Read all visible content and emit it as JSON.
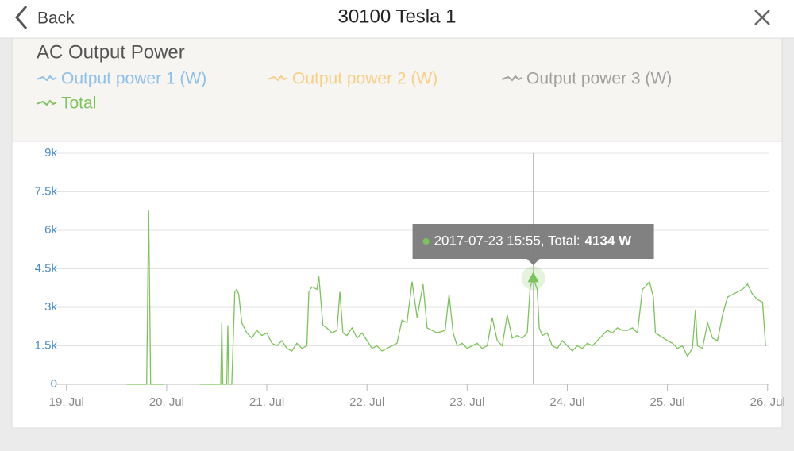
{
  "header": {
    "back": "Back",
    "title": "30100 Tesla 1"
  },
  "chart_data": {
    "type": "line",
    "title": "AC Output Power",
    "xlim": [
      18.97,
      26.01
    ],
    "xticks": [
      {
        "value": 19,
        "label": "19. Jul"
      },
      {
        "value": 20,
        "label": "20. Jul"
      },
      {
        "value": 21,
        "label": "21. Jul"
      },
      {
        "value": 22,
        "label": "22. Jul"
      },
      {
        "value": 23,
        "label": "23. Jul"
      },
      {
        "value": 24,
        "label": "24. Jul"
      },
      {
        "value": 25,
        "label": "25. Jul"
      },
      {
        "value": 26,
        "label": "26. Jul"
      }
    ],
    "ylim": [
      0,
      9000
    ],
    "yticks": [
      0,
      {
        "value": 1500,
        "label": "1.5k"
      },
      {
        "value": 3000,
        "label": "3k"
      },
      {
        "value": 4500,
        "label": "4.5k"
      },
      {
        "value": 6000,
        "label": "6k"
      },
      {
        "value": 7500,
        "label": "7.5k"
      },
      {
        "value": 9000,
        "label": "9k"
      }
    ],
    "grid": true,
    "series": [
      {
        "name": "Output power 1 (W)",
        "color": "#8fc0e8",
        "hidden": true
      },
      {
        "name": "Output power 2 (W)",
        "color": "#f7cf85",
        "hidden": true
      },
      {
        "name": "Output power 3 (W)",
        "color": "#a0a0a0",
        "hidden": true
      },
      {
        "name": "Total",
        "color": "#7dc35b",
        "x": [
          19.6,
          19.8,
          19.82,
          19.84,
          19.97,
          20.15,
          20.33,
          20.54,
          20.55,
          20.56,
          20.6,
          20.61,
          20.62,
          20.65,
          20.68,
          20.7,
          20.72,
          20.75,
          20.8,
          20.85,
          20.9,
          20.95,
          21.0,
          21.05,
          21.1,
          21.15,
          21.2,
          21.25,
          21.3,
          21.35,
          21.4,
          21.42,
          21.45,
          21.5,
          21.52,
          21.56,
          21.6,
          21.65,
          21.7,
          21.73,
          21.76,
          21.8,
          21.85,
          21.9,
          21.95,
          22.0,
          22.05,
          22.1,
          22.15,
          22.2,
          22.25,
          22.3,
          22.35,
          22.4,
          22.45,
          22.5,
          22.56,
          22.6,
          22.65,
          22.7,
          22.78,
          22.82,
          22.86,
          22.9,
          22.95,
          23.0,
          23.05,
          23.1,
          23.15,
          23.2,
          23.25,
          23.3,
          23.35,
          23.4,
          23.45,
          23.5,
          23.55,
          23.6,
          23.63,
          23.66,
          23.7,
          23.72,
          23.75,
          23.8,
          23.85,
          23.9,
          23.95,
          24.0,
          24.05,
          24.1,
          24.15,
          24.2,
          24.25,
          24.3,
          24.35,
          24.4,
          24.45,
          24.5,
          24.55,
          24.6,
          24.65,
          24.7,
          24.75,
          24.78,
          24.82,
          24.86,
          24.88,
          24.92,
          24.96,
          25.0,
          25.05,
          25.1,
          25.15,
          25.2,
          25.25,
          25.28,
          25.3,
          25.35,
          25.4,
          25.45,
          25.5,
          25.55,
          25.6,
          25.65,
          25.7,
          25.75,
          25.8,
          25.85,
          25.9,
          25.95,
          25.98
        ],
        "values": [
          0,
          0,
          6800,
          0,
          0,
          null,
          0,
          0,
          2400,
          0,
          0,
          2300,
          0,
          0,
          3600,
          3700,
          3500,
          2400,
          2000,
          1800,
          2100,
          1900,
          2000,
          1600,
          1500,
          1700,
          1400,
          1300,
          1600,
          1400,
          1500,
          3600,
          3800,
          3700,
          4200,
          2300,
          2200,
          2000,
          2100,
          3600,
          2000,
          1900,
          2200,
          1800,
          2000,
          1700,
          1400,
          1500,
          1300,
          1400,
          1500,
          1600,
          2500,
          2400,
          4000,
          2600,
          3900,
          2200,
          2100,
          2000,
          2100,
          3500,
          2000,
          1500,
          1600,
          1400,
          1500,
          1600,
          1400,
          1500,
          2600,
          1700,
          1500,
          2700,
          1800,
          1900,
          1800,
          2000,
          3800,
          4134,
          3700,
          2200,
          1900,
          2000,
          1500,
          1400,
          1700,
          1500,
          1300,
          1500,
          1400,
          1600,
          1500,
          1700,
          1900,
          2100,
          2000,
          2200,
          2100,
          2100,
          2200,
          2000,
          3700,
          3800,
          4000,
          3400,
          2000,
          1900,
          1800,
          1700,
          1600,
          1400,
          1500,
          1100,
          1400,
          2900,
          1500,
          1400,
          2400,
          1800,
          1700,
          2700,
          3400,
          3500,
          3600,
          3700,
          3900,
          3500,
          3300,
          3200,
          1500
        ]
      }
    ],
    "annotation": {
      "x": 23.66,
      "label": "2017-07-23 15:55, Total:",
      "value": 4134,
      "value_label": "4134 W"
    }
  }
}
